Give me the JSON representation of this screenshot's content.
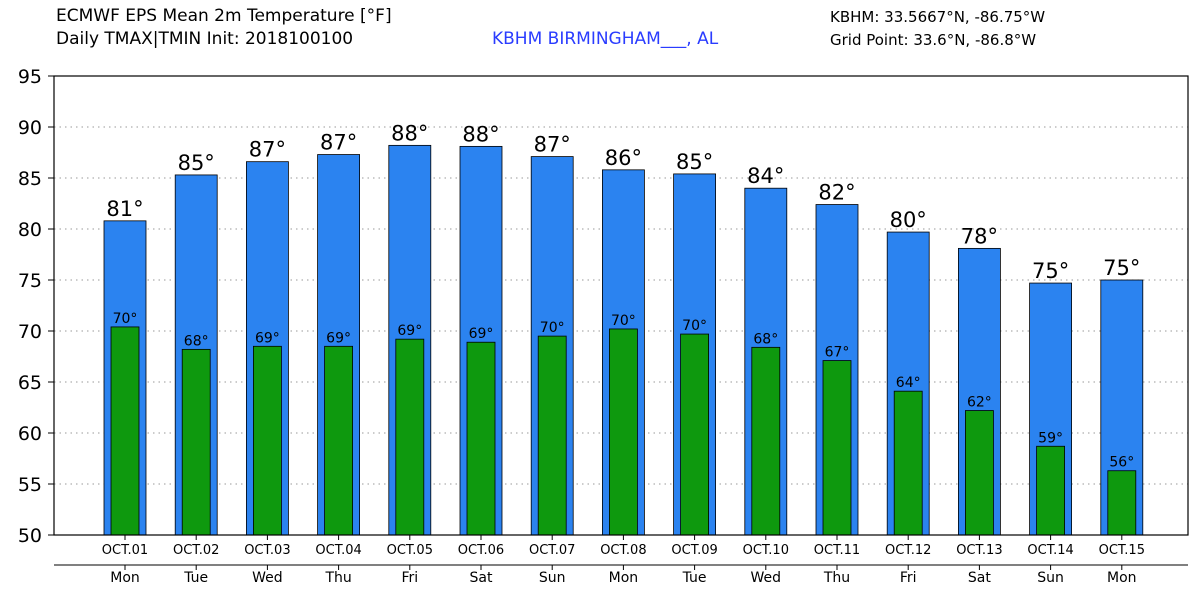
{
  "header": {
    "title_line1": "ECMWF EPS Mean 2m Temperature [°F]",
    "title_line2": "Daily TMAX|TMIN Init: 2018100100",
    "station": "KBHM BIRMINGHAM___, AL",
    "coord_line1": "KBHM: 33.5667°N, -86.75°W",
    "coord_line2": "Grid Point: 33.6°N, -86.8°W"
  },
  "colors": {
    "tmax": "#2b83f0",
    "tmin": "#0e990e",
    "station_text": "#2a3cff"
  },
  "chart_data": {
    "type": "bar",
    "ylim": [
      50,
      95
    ],
    "yticks": [
      50,
      55,
      60,
      65,
      70,
      75,
      80,
      85,
      90,
      95
    ],
    "grid": true,
    "categories": [
      "OCT.01",
      "OCT.02",
      "OCT.03",
      "OCT.04",
      "OCT.05",
      "OCT.06",
      "OCT.07",
      "OCT.08",
      "OCT.09",
      "OCT.10",
      "OCT.11",
      "OCT.12",
      "OCT.13",
      "OCT.14",
      "OCT.15"
    ],
    "days": [
      "Mon",
      "Tue",
      "Wed",
      "Thu",
      "Fri",
      "Sat",
      "Sun",
      "Mon",
      "Tue",
      "Wed",
      "Thu",
      "Fri",
      "Sat",
      "Sun",
      "Mon"
    ],
    "series": [
      {
        "values": [
          80.8,
          85.3,
          86.6,
          87.3,
          88.2,
          88.1,
          87.1,
          85.8,
          85.4,
          84.0,
          82.4,
          79.7,
          78.1,
          74.7,
          75.0
        ],
        "labels": [
          "81°",
          "85°",
          "87°",
          "87°",
          "88°",
          "88°",
          "87°",
          "86°",
          "85°",
          "84°",
          "82°",
          "80°",
          "78°",
          "75°",
          "75°"
        ]
      },
      {
        "values": [
          70.4,
          68.2,
          68.5,
          68.5,
          69.2,
          68.9,
          69.5,
          70.2,
          69.7,
          68.4,
          67.1,
          64.1,
          62.2,
          58.7,
          56.3
        ],
        "labels": [
          "70°",
          "68°",
          "69°",
          "69°",
          "69°",
          "69°",
          "70°",
          "70°",
          "70°",
          "68°",
          "67°",
          "64°",
          "62°",
          "59°",
          "56°"
        ]
      }
    ]
  }
}
